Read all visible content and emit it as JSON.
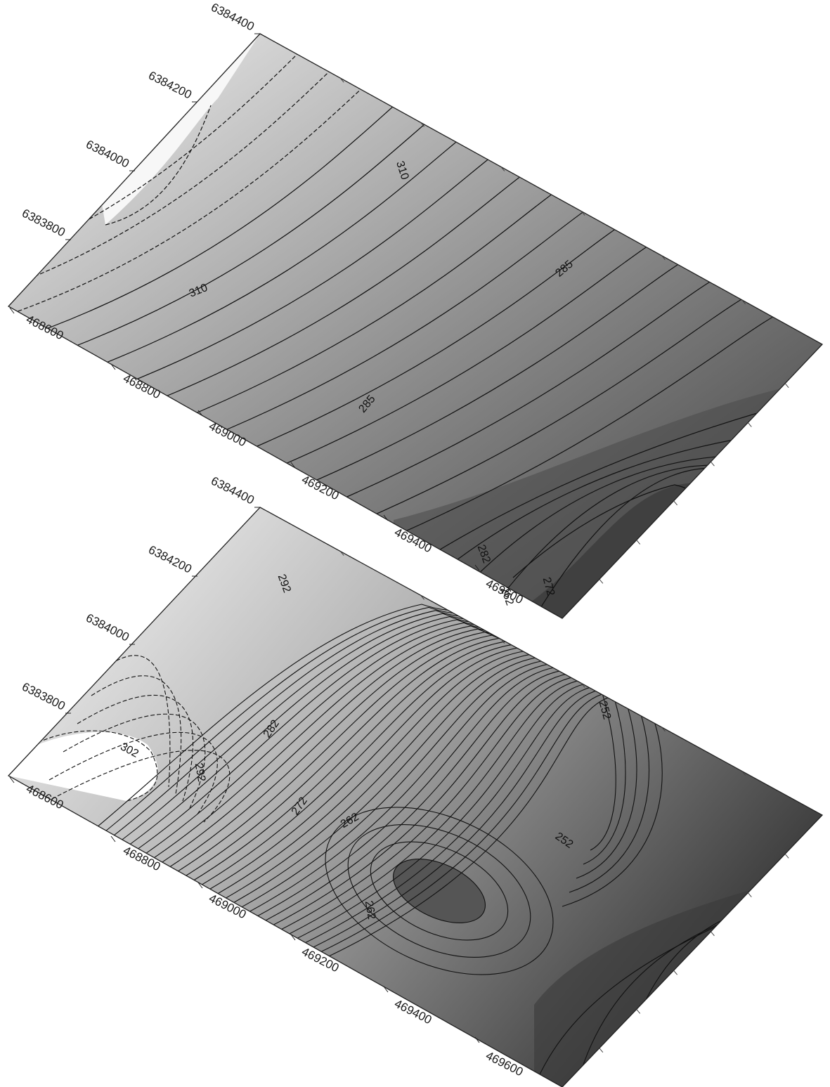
{
  "maps": [
    {
      "id": "upper",
      "y_ticks": [
        "6384400",
        "6384200",
        "6384000",
        "6383800"
      ],
      "x_ticks": [
        "468600",
        "468800",
        "469000",
        "469200",
        "469400",
        "469600"
      ],
      "contour_labels": [
        "310",
        "310",
        "285",
        "285"
      ],
      "shading": {
        "high": "#f1f1f1",
        "low": "#3c3c3c"
      }
    },
    {
      "id": "lower",
      "y_ticks": [
        "6384400",
        "6384200",
        "6384000",
        "6383800"
      ],
      "x_ticks": [
        "468600",
        "468800",
        "469000",
        "469200",
        "469400",
        "469600"
      ],
      "contour_labels": [
        "302",
        "292",
        "292",
        "282",
        "272",
        "262",
        "282",
        "262",
        "272",
        "262",
        "252",
        "252"
      ],
      "shading": {
        "high": "#fbfbfb",
        "low": "#3a3a3a"
      }
    }
  ],
  "colors": {
    "contour_line": "#111111",
    "frame": "#222222"
  }
}
